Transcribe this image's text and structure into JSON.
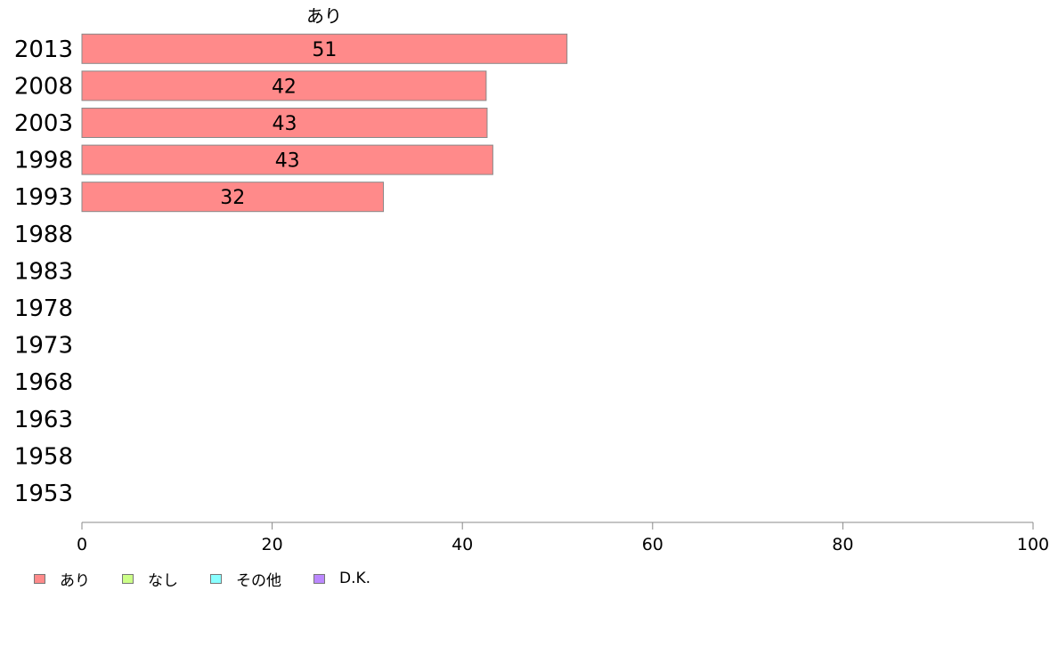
{
  "chart_data": {
    "type": "bar",
    "orientation": "horizontal",
    "stacked": true,
    "categories": [
      "2013",
      "2008",
      "2003",
      "1998",
      "1993",
      "1988",
      "1983",
      "1978",
      "1973",
      "1968",
      "1963",
      "1958",
      "1953"
    ],
    "series": [
      {
        "name": "あり",
        "color": "#ff8a8a",
        "values": [
          51,
          42.5,
          42.6,
          43.2,
          31.7,
          null,
          null,
          null,
          null,
          null,
          null,
          null,
          null
        ],
        "labels": [
          "51",
          "42",
          "43",
          "43",
          "32",
          "",
          "",
          "",
          "",
          "",
          "",
          "",
          ""
        ]
      },
      {
        "name": "なし",
        "color": "#ccff88",
        "values": [
          null,
          null,
          null,
          null,
          null,
          null,
          null,
          null,
          null,
          null,
          null,
          null,
          null
        ]
      },
      {
        "name": "その他",
        "color": "#88ffff",
        "values": [
          null,
          null,
          null,
          null,
          null,
          null,
          null,
          null,
          null,
          null,
          null,
          null,
          null
        ]
      },
      {
        "name": "D.K.",
        "color": "#bb88ff",
        "values": [
          null,
          null,
          null,
          null,
          null,
          null,
          null,
          null,
          null,
          null,
          null,
          null,
          null
        ]
      }
    ],
    "series_title": "あり",
    "xlim": [
      0,
      100
    ],
    "xticks": [
      0,
      20,
      40,
      60,
      80,
      100
    ],
    "grid": false,
    "legend_position": "bottom-left"
  }
}
